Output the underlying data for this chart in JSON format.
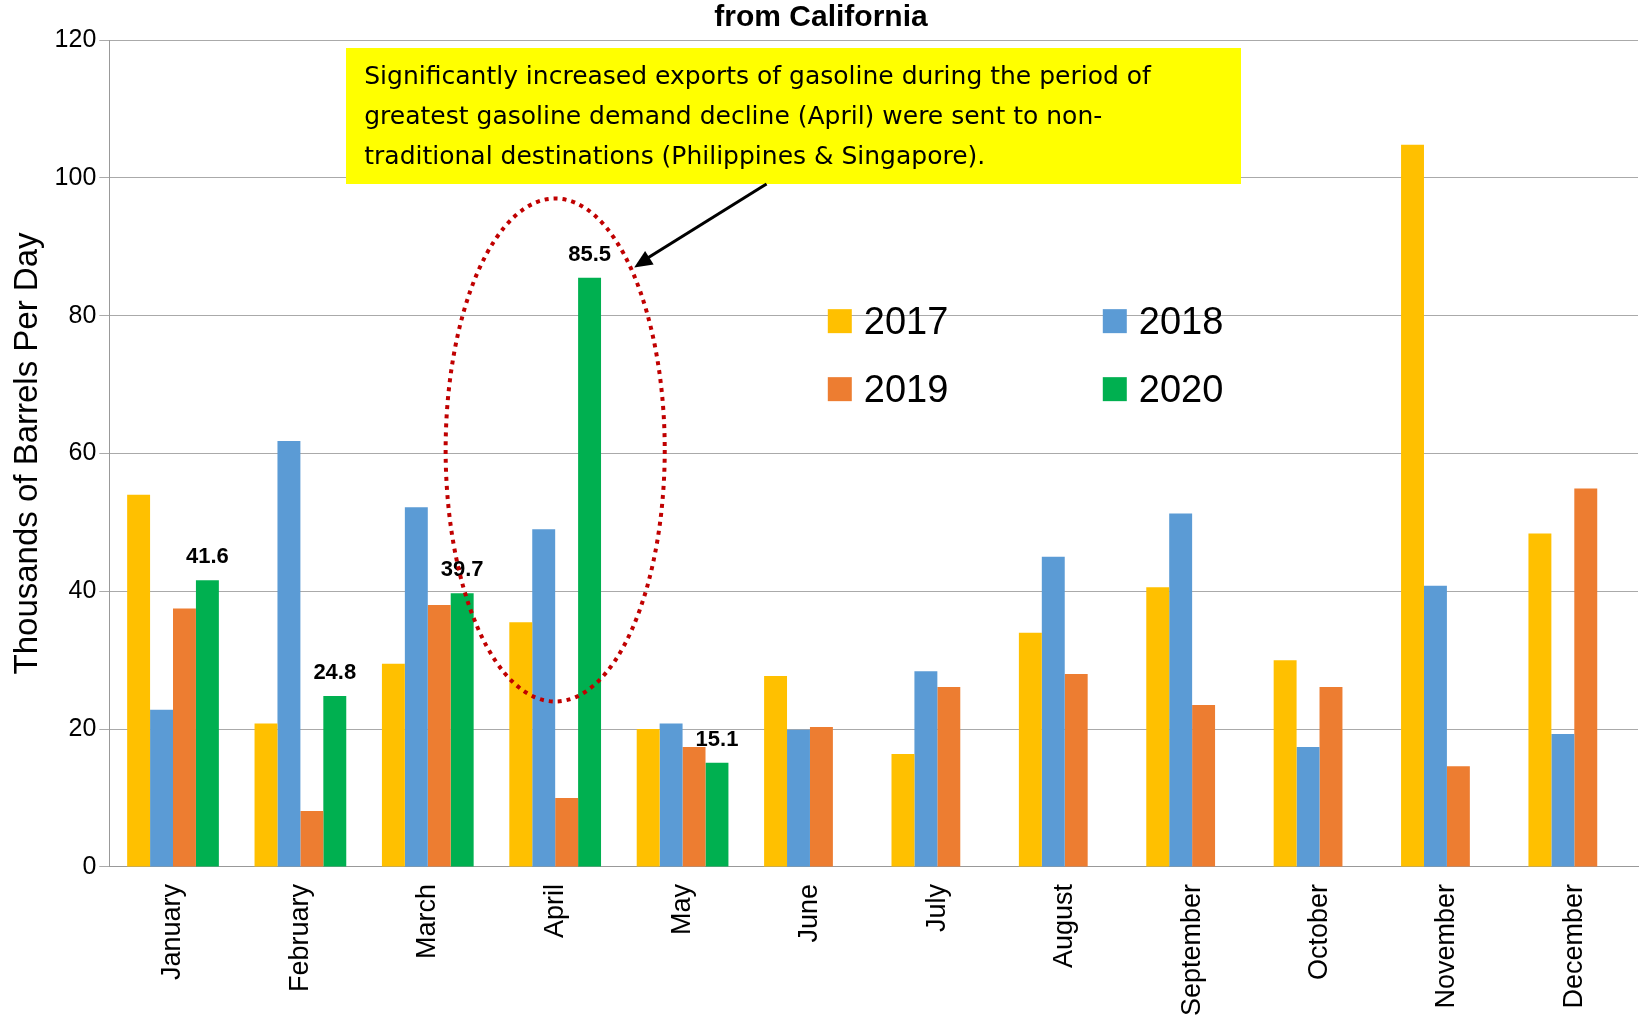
{
  "chart_data": {
    "type": "bar",
    "title": "from California",
    "ylabel": "Thousands of Barrels Per Day",
    "categories": [
      "January",
      "February",
      "March",
      "April",
      "May",
      "June",
      "July",
      "August",
      "September",
      "October",
      "November",
      "December"
    ],
    "series": [
      {
        "name": "2017",
        "color": "#ffc000",
        "values": [
          54,
          20.8,
          29.5,
          35.5,
          20,
          27.7,
          16.4,
          34,
          40.6,
          30,
          104.8,
          48.4
        ]
      },
      {
        "name": "2018",
        "color": "#5b9bd5",
        "values": [
          22.8,
          61.8,
          52.2,
          49,
          20.8,
          19.9,
          28.4,
          45,
          51.3,
          17.4,
          40.8,
          19.3
        ]
      },
      {
        "name": "2019",
        "color": "#ed7d31",
        "values": [
          37.5,
          8.1,
          38,
          10,
          17.4,
          20.3,
          26.1,
          28,
          23.5,
          26.1,
          14.6,
          54.9
        ]
      },
      {
        "name": "2020",
        "color": "#00b050",
        "values": [
          41.6,
          24.8,
          39.7,
          85.5,
          15.1,
          null,
          null,
          null,
          null,
          null,
          null,
          null
        ],
        "value_labels": [
          "41.6",
          "24.8",
          "39.7",
          "85.5",
          "15.1",
          null,
          null,
          null,
          null,
          null,
          null,
          null
        ]
      }
    ],
    "ylim": [
      0,
      120
    ],
    "yticks": [
      0,
      20,
      40,
      60,
      80,
      100,
      120
    ],
    "grid": "y",
    "legend": "top right",
    "annotations": [
      "Significantly increased exports of gasoline during the period of greatest gasoline demand decline (April) were sent to non-traditional destinations (Philippines & Singapore)."
    ]
  }
}
